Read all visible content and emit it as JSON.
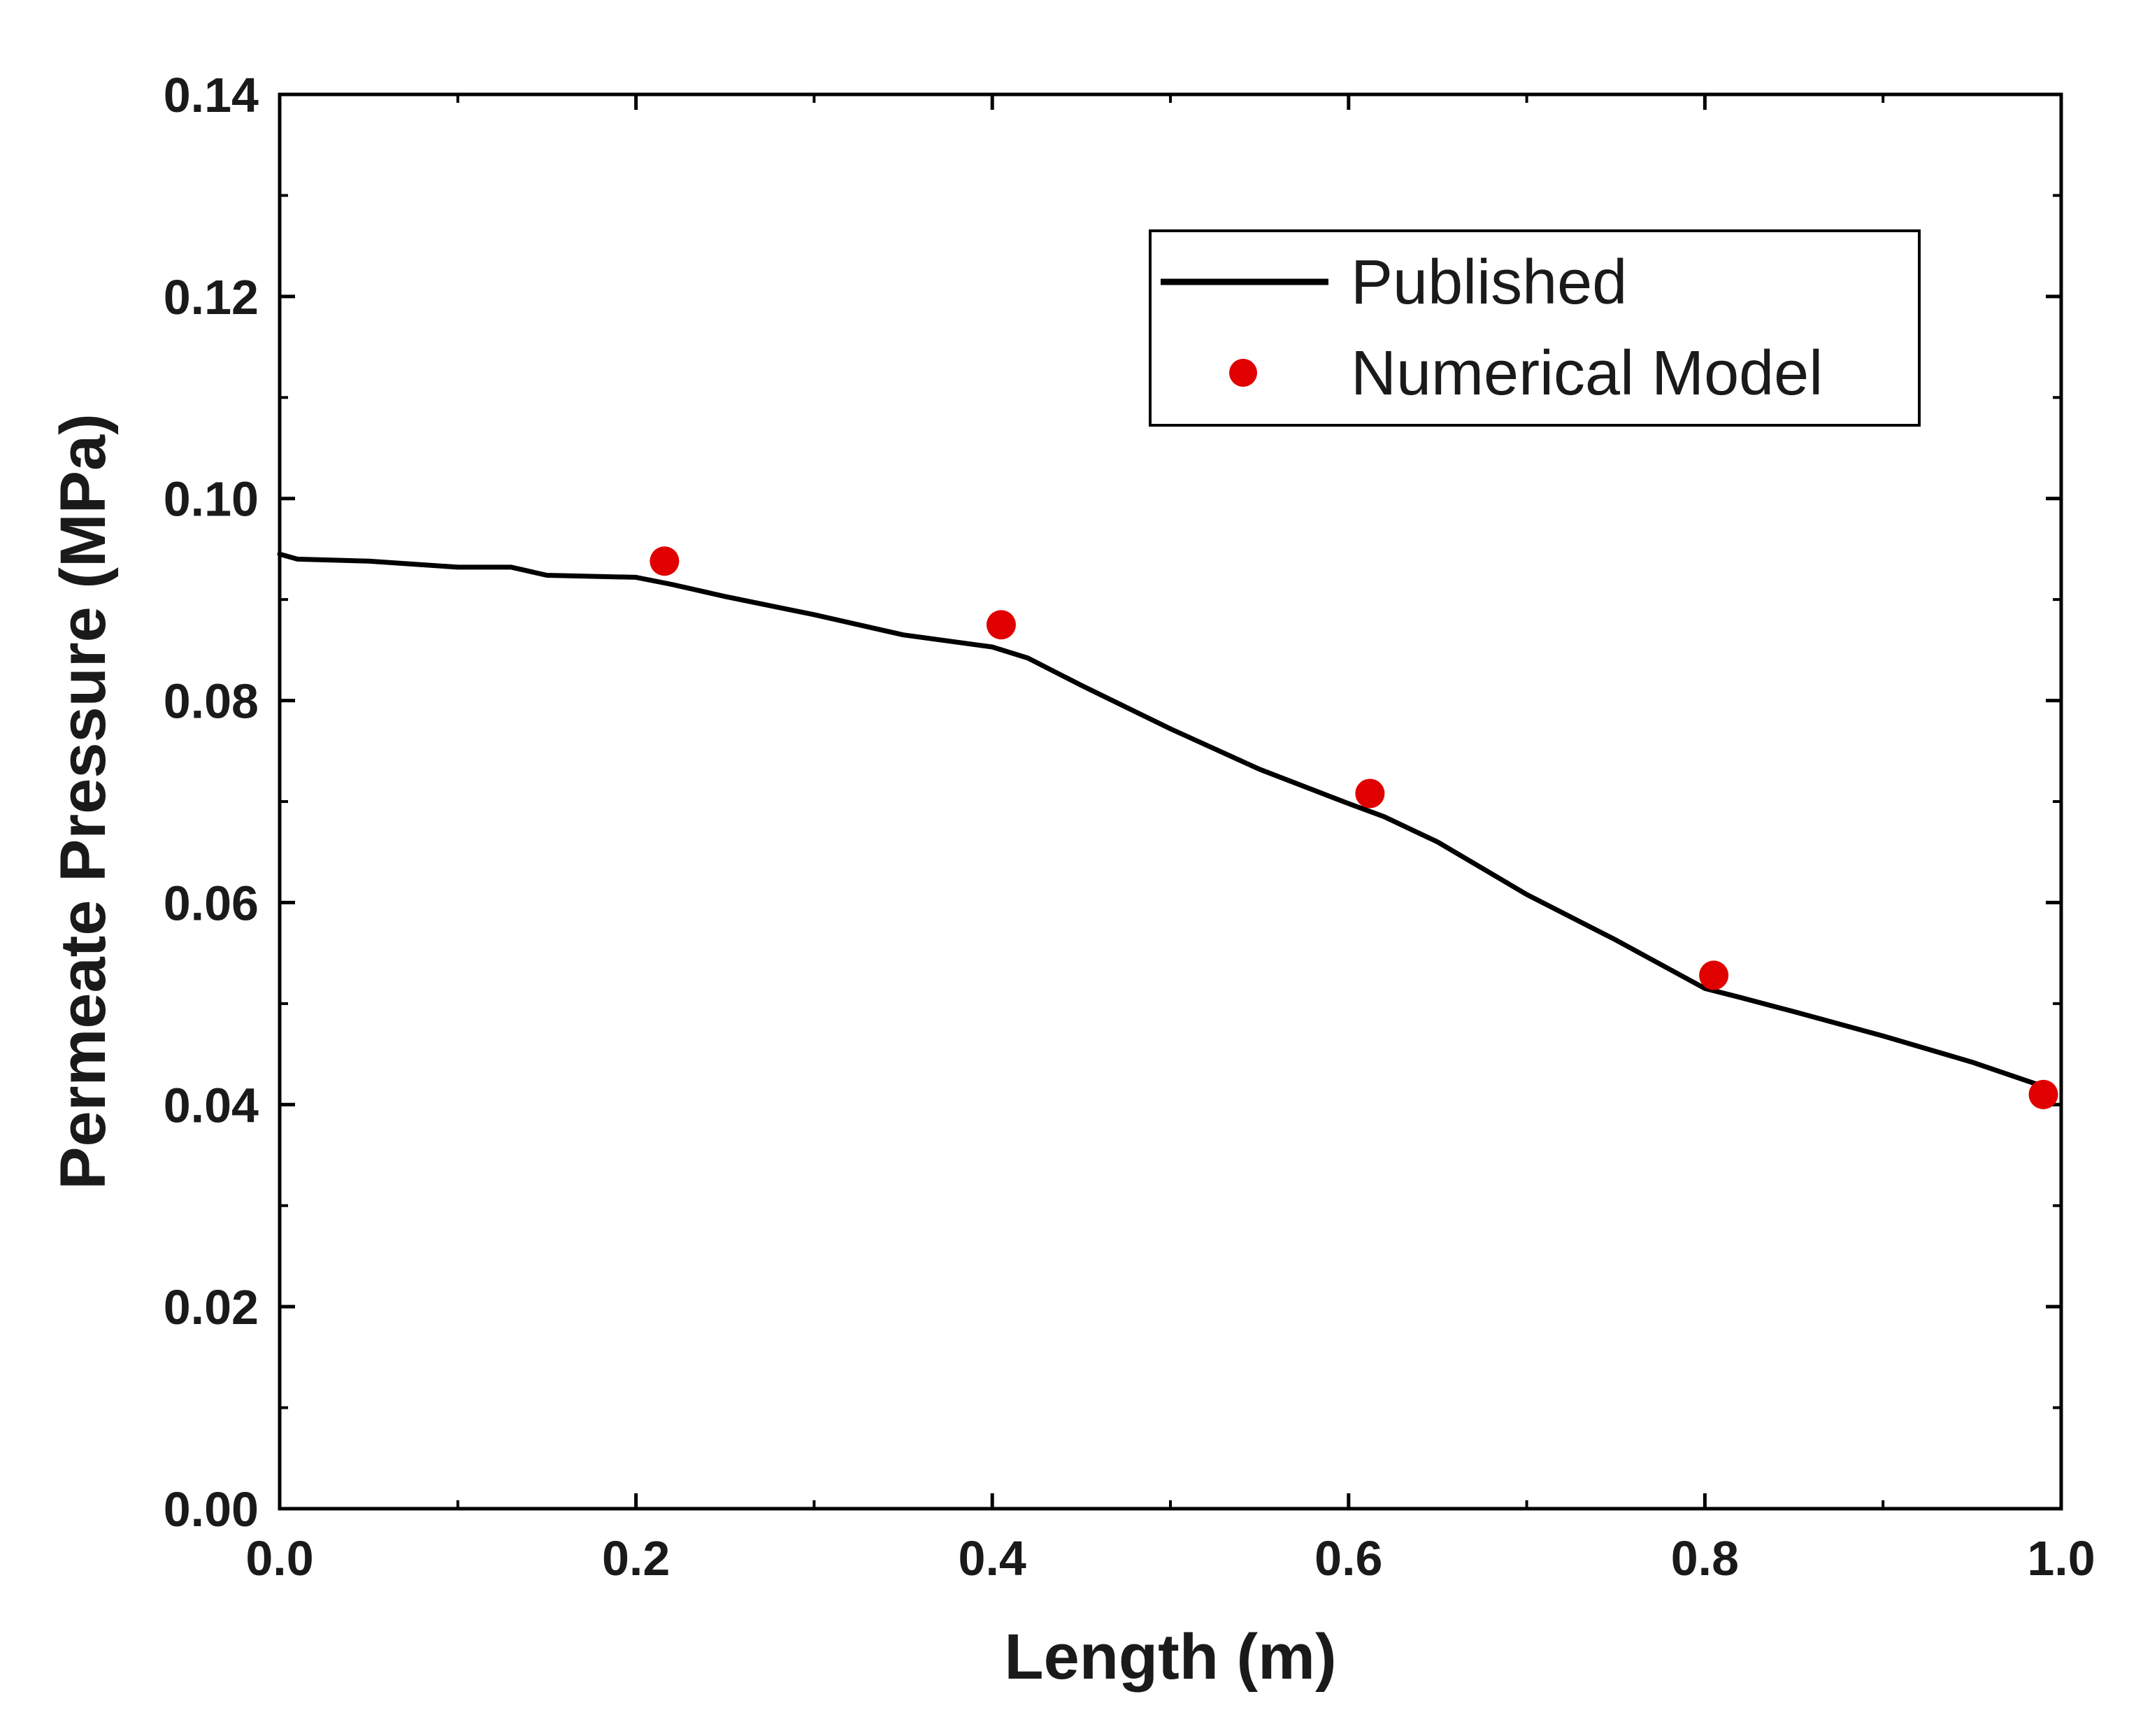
{
  "chart_data": {
    "type": "line",
    "title": "",
    "xlabel": "Length (m)",
    "ylabel": "Permeate Pressure (MPa)",
    "xlim": [
      0.0,
      1.0
    ],
    "ylim": [
      0.0,
      0.14
    ],
    "x_ticks": [
      0.0,
      0.2,
      0.4,
      0.6,
      0.8,
      1.0
    ],
    "x_tick_labels": [
      "0.0",
      "0.2",
      "0.4",
      "0.6",
      "0.8",
      "1.0"
    ],
    "y_ticks": [
      0.0,
      0.02,
      0.04,
      0.06,
      0.08,
      0.1,
      0.12,
      0.14
    ],
    "y_tick_labels": [
      "0.00",
      "0.02",
      "0.04",
      "0.06",
      "0.08",
      "0.10",
      "0.12",
      "0.14"
    ],
    "grid": false,
    "legend_position": "top-right",
    "series": [
      {
        "name": "Published",
        "style": "line",
        "color": "#000000",
        "x": [
          0.0,
          0.01,
          0.05,
          0.1,
          0.13,
          0.15,
          0.2,
          0.22,
          0.25,
          0.3,
          0.35,
          0.4,
          0.42,
          0.45,
          0.5,
          0.55,
          0.6,
          0.62,
          0.65,
          0.7,
          0.75,
          0.8,
          0.82,
          0.85,
          0.9,
          0.95,
          0.99
        ],
        "y": [
          0.0945,
          0.094,
          0.0938,
          0.0932,
          0.0932,
          0.0924,
          0.0922,
          0.0915,
          0.0903,
          0.0885,
          0.0865,
          0.0853,
          0.0842,
          0.0815,
          0.0772,
          0.0732,
          0.0698,
          0.0685,
          0.066,
          0.0608,
          0.0563,
          0.0515,
          0.0506,
          0.0492,
          0.0468,
          0.0442,
          0.0418
        ]
      },
      {
        "name": "Numerical Model",
        "style": "scatter",
        "color": "#e00000",
        "x": [
          0.216,
          0.405,
          0.612,
          0.805,
          0.99
        ],
        "y": [
          0.0938,
          0.0875,
          0.0708,
          0.0528,
          0.041
        ]
      }
    ]
  }
}
